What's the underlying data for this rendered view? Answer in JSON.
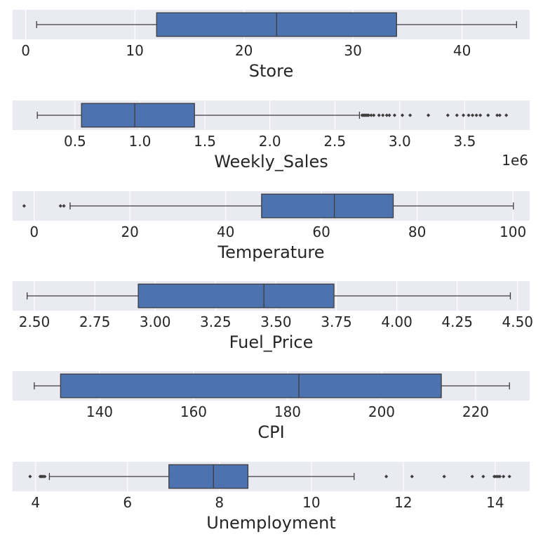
{
  "chart_data": [
    {
      "type": "box",
      "xlabel": "Store",
      "xlim": [
        -1.2,
        46.2
      ],
      "ticks": [
        0,
        10,
        20,
        30,
        40
      ],
      "tick_labels": [
        "0",
        "10",
        "20",
        "30",
        "40"
      ],
      "offset_text": "",
      "whisker_low": 1,
      "q1": 12,
      "median": 23,
      "q3": 34,
      "whisker_high": 45,
      "outliers": [],
      "grid": true
    },
    {
      "type": "box",
      "xlabel": "Weekly_Sales",
      "xlim": [
        0.02,
        4.0
      ],
      "ticks": [
        0.5,
        1.0,
        1.5,
        2.0,
        2.5,
        3.0,
        3.5
      ],
      "tick_labels": [
        "0.5",
        "1.0",
        "1.5",
        "2.0",
        "2.5",
        "3.0",
        "3.5"
      ],
      "offset_text": "1e6",
      "whisker_low": 0.21,
      "q1": 0.55,
      "median": 0.96,
      "q3": 1.42,
      "whisker_high": 2.69,
      "outliers": [
        2.71,
        2.72,
        2.73,
        2.74,
        2.75,
        2.76,
        2.78,
        2.8,
        2.84,
        2.87,
        2.9,
        2.92,
        2.96,
        3.02,
        3.08,
        3.22,
        3.37,
        3.44,
        3.49,
        3.53,
        3.56,
        3.59,
        3.62,
        3.68,
        3.75,
        3.77,
        3.82
      ],
      "grid": true
    },
    {
      "type": "box",
      "xlabel": "Temperature",
      "xlim": [
        -4.5,
        103.5
      ],
      "ticks": [
        0,
        20,
        40,
        60,
        80,
        100
      ],
      "tick_labels": [
        "0",
        "20",
        "40",
        "60",
        "80",
        "100"
      ],
      "offset_text": "",
      "whisker_low": 7.5,
      "q1": 47.5,
      "median": 62.7,
      "q3": 75.0,
      "whisker_high": 100.1,
      "outliers": [
        -2.1,
        5.5,
        6.2
      ],
      "grid": true
    },
    {
      "type": "box",
      "xlabel": "Fuel_Price",
      "xlim": [
        2.41,
        4.55
      ],
      "ticks": [
        2.5,
        2.75,
        3.0,
        3.25,
        3.5,
        3.75,
        4.0,
        4.25,
        4.5
      ],
      "tick_labels": [
        "2.50",
        "2.75",
        "3.00",
        "3.25",
        "3.50",
        "3.75",
        "4.00",
        "4.25",
        "4.50"
      ],
      "offset_text": "",
      "whisker_low": 2.47,
      "q1": 2.93,
      "median": 3.45,
      "q3": 3.74,
      "whisker_high": 4.47,
      "outliers": [],
      "grid": true
    },
    {
      "type": "box",
      "xlabel": "CPI",
      "xlim": [
        121.5,
        231.5
      ],
      "ticks": [
        140,
        160,
        180,
        200,
        220
      ],
      "tick_labels": [
        "140",
        "160",
        "180",
        "200",
        "220"
      ],
      "offset_text": "",
      "whisker_low": 126.1,
      "q1": 131.7,
      "median": 182.4,
      "q3": 212.7,
      "whisker_high": 227.2,
      "outliers": [],
      "grid": true
    },
    {
      "type": "box",
      "xlabel": "Unemployment",
      "xlim": [
        3.5,
        14.75
      ],
      "ticks": [
        4,
        6,
        8,
        10,
        12,
        14
      ],
      "tick_labels": [
        "4",
        "6",
        "8",
        "10",
        "12",
        "14"
      ],
      "offset_text": "",
      "whisker_low": 4.3,
      "q1": 6.9,
      "median": 7.87,
      "q3": 8.62,
      "whisker_high": 10.93,
      "outliers": [
        3.88,
        4.1,
        4.13,
        4.16,
        4.2,
        11.63,
        12.19,
        12.89,
        13.5,
        13.74,
        13.98,
        14.02,
        14.06,
        14.1,
        14.18,
        14.31
      ],
      "grid": true
    }
  ]
}
